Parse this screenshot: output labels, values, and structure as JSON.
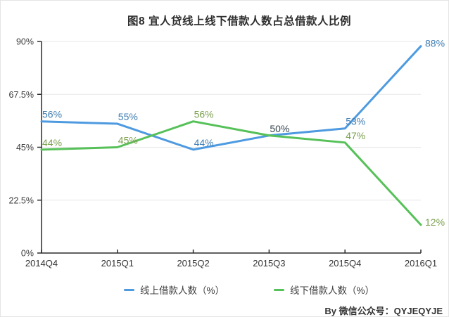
{
  "footer": {
    "text": "By 微信公众号：QYJEQYJE"
  },
  "chart_data": {
    "type": "line",
    "title": "图8  宜人贷线上线下借款人数占总借款人比例",
    "categories": [
      "2014Q4",
      "2015Q1",
      "2015Q2",
      "2015Q3",
      "2015Q4",
      "2016Q1"
    ],
    "series": [
      {
        "name": "线上借款人数（%）",
        "color": "#4d9ae0",
        "values": [
          56,
          55,
          44,
          50,
          53,
          88
        ]
      },
      {
        "name": "线下借款人数（%）",
        "color": "#56c158",
        "values": [
          44,
          45,
          56,
          50,
          47,
          12
        ]
      }
    ],
    "yticks": [
      0,
      22.5,
      45,
      67.5,
      90
    ],
    "ytick_labels": [
      "0%",
      "22.5%",
      "45%",
      "67.5%",
      "90%"
    ],
    "ylim": [
      0,
      90
    ],
    "grid": true,
    "legend_position": "bottom",
    "point_labels": [
      {
        "i": 0,
        "value": 56,
        "text": "56%",
        "color": "#3e7db3",
        "placement": "above"
      },
      {
        "i": 0,
        "value": 44,
        "text": "44%",
        "color": "#7ba04f",
        "placement": "above"
      },
      {
        "i": 1,
        "value": 55,
        "text": "55%",
        "color": "#3e7db3",
        "placement": "above"
      },
      {
        "i": 1,
        "value": 45,
        "text": "45%",
        "color": "#7ba04f",
        "placement": "above"
      },
      {
        "i": 2,
        "value": 56,
        "text": "56%",
        "color": "#7ba04f",
        "placement": "above"
      },
      {
        "i": 2,
        "value": 44,
        "text": "44%",
        "color": "#3e7db3",
        "placement": "above"
      },
      {
        "i": 3,
        "value": 50,
        "text": "50%",
        "color": "#36454f",
        "placement": "above"
      },
      {
        "i": 4,
        "value": 53,
        "text": "53%",
        "color": "#3e7db3",
        "placement": "above"
      },
      {
        "i": 4,
        "value": 47,
        "text": "47%",
        "color": "#7ba04f",
        "placement": "above"
      },
      {
        "i": 5,
        "value": 88,
        "text": "88%",
        "color": "#3e7db3",
        "placement": "right"
      },
      {
        "i": 5,
        "value": 12,
        "text": "12%",
        "color": "#7ba04f",
        "placement": "right"
      }
    ],
    "colors": {
      "axis": "#2b2b2b",
      "grid": "#e7e7e7",
      "tick_label": "#3d3d3d",
      "x_label": "#333333"
    }
  }
}
